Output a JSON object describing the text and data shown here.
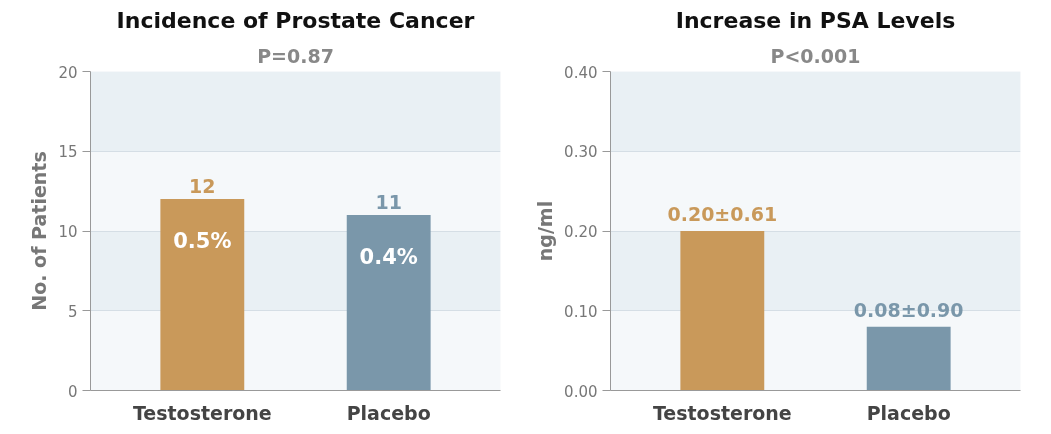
{
  "chart_data": [
    {
      "type": "bar",
      "title": "Incidence of Prostate Cancer",
      "subtitle": "P=0.87",
      "ylabel": "No. of Patients",
      "categories": [
        "Testosterone",
        "Placebo"
      ],
      "values": [
        12,
        11
      ],
      "colors": [
        "#c9995a",
        "#7a97aa"
      ],
      "value_labels": [
        "12",
        "11"
      ],
      "annotations": [
        "0.5%",
        "0.4%"
      ],
      "ylim": [
        0,
        20
      ],
      "yticks": [
        0,
        5,
        10,
        15,
        20
      ],
      "grid": "y"
    },
    {
      "type": "bar",
      "title": "Increase in PSA Levels",
      "subtitle": "P<0.001",
      "ylabel": "ng/ml",
      "categories": [
        "Testosterone",
        "Placebo"
      ],
      "values": [
        0.2,
        0.08
      ],
      "colors": [
        "#c9995a",
        "#7a97aa"
      ],
      "value_labels": [
        "0.20±0.61",
        "0.08±0.90"
      ],
      "ylim": [
        0,
        0.4
      ],
      "yticks": [
        {
          "value": 0,
          "label": "0.00"
        },
        {
          "value": 0.1,
          "label": "0.10"
        },
        {
          "value": 0.2,
          "label": "0.20"
        },
        {
          "value": 0.3,
          "label": "0.30"
        },
        {
          "value": 0.4,
          "label": "0.40"
        }
      ],
      "grid": "y"
    }
  ]
}
